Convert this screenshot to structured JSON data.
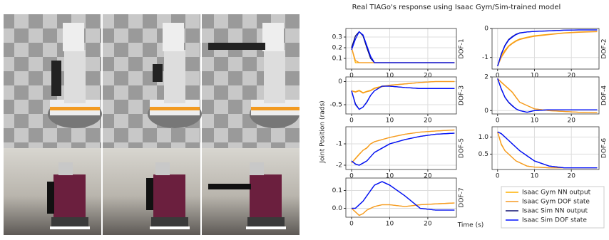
{
  "title": "Real TIAGo's response using Isaac Gym/Sim-trained model",
  "ylabel": "Joint Position (rads)",
  "xlabel": "Time (s)",
  "time": [
    0,
    1,
    2,
    3,
    4,
    5,
    6,
    8,
    10,
    14,
    18,
    22,
    27
  ],
  "legend": [
    {
      "name": "Isaac Gym NN output",
      "color": "#ffb000"
    },
    {
      "name": "Isaac Gym DOF state",
      "color": "#f59a23"
    },
    {
      "name": "Isaac Sim NN output",
      "color": "#101070"
    },
    {
      "name": "Isaac Sim DOF state",
      "color": "#0010ff"
    }
  ],
  "chart_data": [
    {
      "type": "line",
      "label": "DOF-1",
      "xlim": [
        -1.5,
        27.5
      ],
      "xticks": [
        0,
        10,
        20
      ],
      "ylim": [
        0,
        0.38
      ],
      "yticks": [
        0.1,
        0.2,
        0.3
      ],
      "grid": true,
      "series": [
        {
          "values": [
            0.2,
            0.06,
            0.06,
            0.06,
            0.06,
            0.06,
            0.06,
            0.06,
            0.06,
            0.06,
            0.06,
            0.06,
            0.06
          ]
        },
        {
          "values": [
            0.2,
            0.08,
            0.06,
            0.06,
            0.06,
            0.06,
            0.06,
            0.06,
            0.06,
            0.06,
            0.06,
            0.06,
            0.06
          ]
        },
        {
          "values": [
            0.2,
            0.31,
            0.35,
            0.31,
            0.2,
            0.1,
            0.06,
            0.06,
            0.06,
            0.06,
            0.06,
            0.06,
            0.06
          ]
        },
        {
          "values": [
            0.18,
            0.28,
            0.35,
            0.32,
            0.22,
            0.12,
            0.06,
            0.06,
            0.06,
            0.06,
            0.06,
            0.06,
            0.06
          ]
        }
      ]
    },
    {
      "type": "line",
      "label": "DOF-2",
      "xlim": [
        -1.5,
        27.5
      ],
      "xticks": [
        0,
        10,
        20
      ],
      "ylim": [
        -1.4,
        0
      ],
      "yticks": [
        -1,
        0
      ],
      "grid": true,
      "series": [
        {
          "values": [
            -1.3,
            -0.95,
            -0.75,
            -0.6,
            -0.5,
            -0.42,
            -0.36,
            -0.3,
            -0.25,
            -0.2,
            -0.15,
            -0.12,
            -0.1
          ]
        },
        {
          "values": [
            -1.3,
            -1.0,
            -0.8,
            -0.62,
            -0.52,
            -0.44,
            -0.38,
            -0.32,
            -0.27,
            -0.21,
            -0.16,
            -0.13,
            -0.11
          ]
        },
        {
          "values": [
            -1.3,
            -0.88,
            -0.58,
            -0.38,
            -0.28,
            -0.2,
            -0.15,
            -0.12,
            -0.1,
            -0.08,
            -0.06,
            -0.05,
            -0.05
          ]
        },
        {
          "values": [
            -1.3,
            -0.9,
            -0.6,
            -0.4,
            -0.3,
            -0.21,
            -0.16,
            -0.12,
            -0.1,
            -0.08,
            -0.06,
            -0.05,
            -0.05
          ]
        }
      ]
    },
    {
      "type": "line",
      "label": "DOF-3",
      "xlim": [
        -1.5,
        27.5
      ],
      "xticks": [
        0,
        10,
        20
      ],
      "ylim": [
        -0.7,
        0.1
      ],
      "yticks": [
        -0.5,
        0
      ],
      "grid": true,
      "series": [
        {
          "values": [
            -0.2,
            -0.22,
            -0.19,
            -0.24,
            -0.21,
            -0.19,
            -0.14,
            -0.1,
            -0.08,
            -0.05,
            -0.02,
            0,
            0
          ]
        },
        {
          "values": [
            -0.2,
            -0.23,
            -0.2,
            -0.25,
            -0.22,
            -0.2,
            -0.15,
            -0.11,
            -0.08,
            -0.05,
            -0.02,
            0,
            0
          ]
        },
        {
          "values": [
            -0.2,
            -0.48,
            -0.6,
            -0.55,
            -0.44,
            -0.3,
            -0.2,
            -0.1,
            -0.1,
            -0.13,
            -0.15,
            -0.15,
            -0.15
          ]
        },
        {
          "values": [
            -0.2,
            -0.5,
            -0.6,
            -0.55,
            -0.45,
            -0.3,
            -0.2,
            -0.1,
            -0.1,
            -0.13,
            -0.15,
            -0.15,
            -0.15
          ]
        }
      ]
    },
    {
      "type": "line",
      "label": "DOF-4",
      "xlim": [
        -1.5,
        27.5
      ],
      "xticks": [
        0,
        10,
        20
      ],
      "ylim": [
        -0.2,
        2
      ],
      "yticks": [
        0,
        2
      ],
      "grid": true,
      "series": [
        {
          "values": [
            1.9,
            1.68,
            1.48,
            1.28,
            1.08,
            0.78,
            0.5,
            0.3,
            0.1,
            0,
            -0.05,
            -0.1,
            -0.12
          ]
        },
        {
          "values": [
            1.9,
            1.7,
            1.5,
            1.3,
            1.1,
            0.8,
            0.5,
            0.3,
            0.1,
            0,
            -0.05,
            -0.1,
            -0.12
          ]
        },
        {
          "values": [
            1.9,
            1.28,
            0.78,
            0.48,
            0.28,
            0.1,
            0,
            -0.1,
            0,
            0.05,
            0.05,
            0.05,
            0.05
          ]
        },
        {
          "values": [
            1.9,
            1.3,
            0.8,
            0.5,
            0.3,
            0.1,
            0,
            -0.1,
            0,
            0.05,
            0.05,
            0.05,
            0.05
          ]
        }
      ]
    },
    {
      "type": "line",
      "label": "DOF-5",
      "xlim": [
        -1.5,
        27.5
      ],
      "xticks": [
        0,
        10,
        20
      ],
      "ylim": [
        -2.2,
        -0.2
      ],
      "yticks": [
        -2,
        -1
      ],
      "grid": true,
      "series": [
        {
          "values": [
            -1.9,
            -1.68,
            -1.48,
            -1.3,
            -1.18,
            -1.0,
            -0.9,
            -0.8,
            -0.7,
            -0.55,
            -0.45,
            -0.4,
            -0.35
          ]
        },
        {
          "values": [
            -1.9,
            -1.7,
            -1.5,
            -1.3,
            -1.2,
            -1.0,
            -0.9,
            -0.8,
            -0.7,
            -0.55,
            -0.45,
            -0.4,
            -0.35
          ]
        },
        {
          "values": [
            -1.8,
            -1.94,
            -2.0,
            -1.9,
            -1.8,
            -1.6,
            -1.4,
            -1.2,
            -1.0,
            -0.8,
            -0.65,
            -0.55,
            -0.5
          ]
        },
        {
          "values": [
            -1.8,
            -1.95,
            -2.0,
            -1.9,
            -1.8,
            -1.6,
            -1.4,
            -1.2,
            -1.0,
            -0.8,
            -0.65,
            -0.55,
            -0.5
          ]
        }
      ]
    },
    {
      "type": "line",
      "label": "DOF-6",
      "xlim": [
        -1.5,
        27.5
      ],
      "xticks": [
        0,
        10,
        20
      ],
      "ylim": [
        0.05,
        1.3
      ],
      "yticks": [
        0.5,
        {
          "value": 1.0,
          "label": "1.0"
        }
      ],
      "grid": true,
      "series": [
        {
          "values": [
            1.15,
            0.78,
            0.6,
            0.5,
            0.4,
            0.3,
            0.25,
            0.15,
            0.12,
            0.1,
            0.1,
            0.1,
            0.1
          ]
        },
        {
          "values": [
            1.15,
            0.8,
            0.6,
            0.5,
            0.4,
            0.3,
            0.25,
            0.15,
            0.12,
            0.1,
            0.1,
            0.1,
            0.1
          ]
        },
        {
          "values": [
            1.15,
            1.1,
            1.0,
            0.9,
            0.8,
            0.7,
            0.6,
            0.45,
            0.3,
            0.15,
            0.1,
            0.1,
            0.1
          ]
        },
        {
          "values": [
            1.15,
            1.1,
            1.0,
            0.9,
            0.8,
            0.7,
            0.6,
            0.45,
            0.3,
            0.15,
            0.1,
            0.1,
            0.1
          ]
        }
      ]
    },
    {
      "type": "line",
      "label": "DOF-7",
      "xlim": [
        -1.5,
        27.5
      ],
      "xticks": [
        0,
        10,
        20
      ],
      "ylim": [
        -0.05,
        0.17
      ],
      "yticks": [
        {
          "value": 0,
          "label": "0.0"
        },
        0.1
      ],
      "grid": true,
      "series": [
        {
          "values": [
            0,
            -0.02,
            -0.04,
            -0.03,
            -0.01,
            0,
            0.01,
            0.02,
            0.02,
            0.01,
            0.02,
            0.025,
            0.03
          ]
        },
        {
          "values": [
            0,
            -0.02,
            -0.04,
            -0.03,
            -0.01,
            0,
            0.01,
            0.02,
            0.02,
            0.01,
            0.02,
            0.025,
            0.03
          ]
        },
        {
          "values": [
            0,
            0,
            0.02,
            0.04,
            0.07,
            0.1,
            0.13,
            0.15,
            0.13,
            0.07,
            0,
            -0.01,
            -0.01
          ]
        },
        {
          "values": [
            0,
            0,
            0.02,
            0.04,
            0.07,
            0.1,
            0.13,
            0.15,
            0.13,
            0.07,
            0,
            -0.01,
            -0.01
          ]
        }
      ]
    }
  ]
}
